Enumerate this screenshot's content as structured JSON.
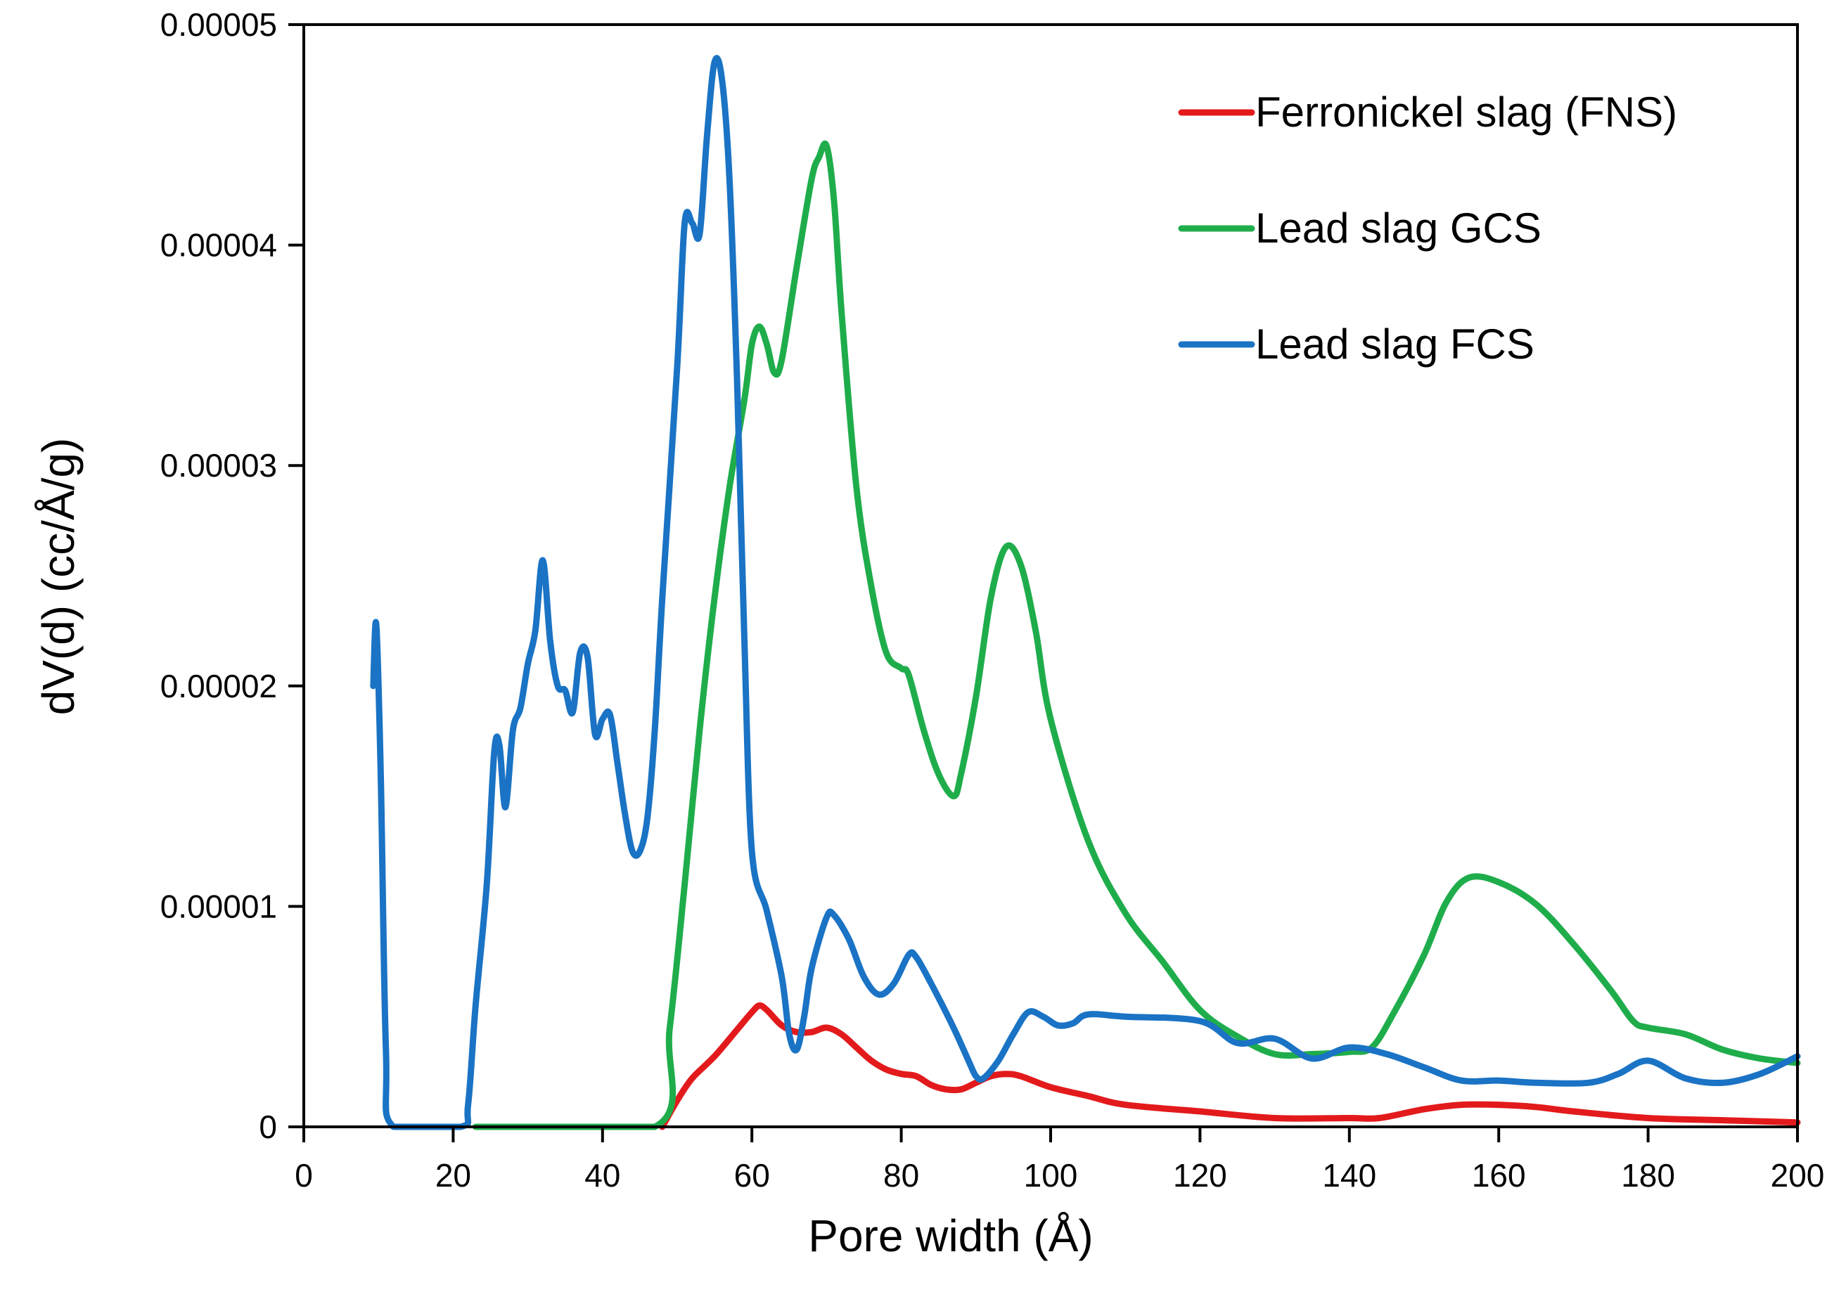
{
  "chart_data": {
    "type": "line",
    "title": "",
    "xlabel": "Pore width (Å)",
    "ylabel": "dV(d) (cc/Å/g)",
    "xlim": [
      0,
      200
    ],
    "ylim": [
      0,
      5e-05
    ],
    "grid": false,
    "legend_position": "top-right",
    "x_ticks": [
      0,
      20,
      40,
      60,
      80,
      100,
      120,
      140,
      160,
      180,
      200
    ],
    "x_tick_labels": [
      "0",
      "20",
      "40",
      "60",
      "80",
      "100",
      "120",
      "140",
      "160",
      "180",
      "200"
    ],
    "y_ticks": [
      0,
      1e-05,
      2e-05,
      3e-05,
      4e-05,
      5e-05
    ],
    "y_tick_labels": [
      "0",
      "0.00001",
      "0.00002",
      "0.00003",
      "0.00004",
      "0.00005"
    ],
    "series": [
      {
        "name": "Ferronickel slag (FNS)",
        "color": "#e31a1c",
        "points": [
          [
            48,
            0
          ],
          [
            50,
            1.2e-06
          ],
          [
            52,
            2.2e-06
          ],
          [
            55,
            3.2e-06
          ],
          [
            58,
            4.4e-06
          ],
          [
            60,
            5.2e-06
          ],
          [
            61,
            5.5e-06
          ],
          [
            62,
            5.3e-06
          ],
          [
            64,
            4.6e-06
          ],
          [
            66,
            4.3e-06
          ],
          [
            68,
            4.3e-06
          ],
          [
            70,
            4.5e-06
          ],
          [
            72,
            4.2e-06
          ],
          [
            74,
            3.6e-06
          ],
          [
            76,
            3e-06
          ],
          [
            78,
            2.6e-06
          ],
          [
            80,
            2.4e-06
          ],
          [
            82,
            2.3e-06
          ],
          [
            84,
            1.9e-06
          ],
          [
            86,
            1.7e-06
          ],
          [
            88,
            1.7e-06
          ],
          [
            90,
            2e-06
          ],
          [
            92,
            2.3e-06
          ],
          [
            94,
            2.4e-06
          ],
          [
            96,
            2.3e-06
          ],
          [
            100,
            1.8e-06
          ],
          [
            105,
            1.4e-06
          ],
          [
            110,
            1e-06
          ],
          [
            120,
            7e-07
          ],
          [
            130,
            4e-07
          ],
          [
            140,
            4e-07
          ],
          [
            144,
            4e-07
          ],
          [
            150,
            8e-07
          ],
          [
            155,
            1e-06
          ],
          [
            160,
            1e-06
          ],
          [
            165,
            9e-07
          ],
          [
            170,
            7e-07
          ],
          [
            180,
            4e-07
          ],
          [
            190,
            3e-07
          ],
          [
            200,
            2e-07
          ]
        ]
      },
      {
        "name": "Lead slag GCS",
        "color": "#1fad4b",
        "points": [
          [
            23,
            0
          ],
          [
            47,
            0
          ],
          [
            49,
            4.5e-06
          ],
          [
            51,
            1.1e-05
          ],
          [
            53,
            1.8e-05
          ],
          [
            55,
            2.4e-05
          ],
          [
            57,
            2.9e-05
          ],
          [
            59,
            3.3e-05
          ],
          [
            60,
            3.55e-05
          ],
          [
            61,
            3.63e-05
          ],
          [
            62,
            3.55e-05
          ],
          [
            63,
            3.42e-05
          ],
          [
            64,
            3.48e-05
          ],
          [
            66,
            3.9e-05
          ],
          [
            68,
            4.3e-05
          ],
          [
            69,
            4.4e-05
          ],
          [
            70,
            4.45e-05
          ],
          [
            71,
            4.2e-05
          ],
          [
            72,
            3.7e-05
          ],
          [
            74,
            2.9e-05
          ],
          [
            76,
            2.45e-05
          ],
          [
            78,
            2.15e-05
          ],
          [
            80,
            2.08e-05
          ],
          [
            81,
            2.05e-05
          ],
          [
            83,
            1.8e-05
          ],
          [
            85,
            1.6e-05
          ],
          [
            87,
            1.5e-05
          ],
          [
            88,
            1.6e-05
          ],
          [
            90,
            1.95e-05
          ],
          [
            92,
            2.4e-05
          ],
          [
            94,
            2.63e-05
          ],
          [
            96,
            2.55e-05
          ],
          [
            98,
            2.25e-05
          ],
          [
            100,
            1.85e-05
          ],
          [
            105,
            1.3e-05
          ],
          [
            110,
            9.7e-06
          ],
          [
            115,
            7.5e-06
          ],
          [
            120,
            5.3e-06
          ],
          [
            125,
            4.1e-06
          ],
          [
            130,
            3.3e-06
          ],
          [
            135,
            3.3e-06
          ],
          [
            140,
            3.4e-06
          ],
          [
            143,
            3.6e-06
          ],
          [
            146,
            5.2e-06
          ],
          [
            150,
            7.8e-06
          ],
          [
            153,
            1.02e-05
          ],
          [
            156,
            1.13e-05
          ],
          [
            160,
            1.11e-05
          ],
          [
            165,
            1.01e-05
          ],
          [
            170,
            8.3e-06
          ],
          [
            175,
            6.2e-06
          ],
          [
            178,
            4.8e-06
          ],
          [
            180,
            4.5e-06
          ],
          [
            185,
            4.2e-06
          ],
          [
            190,
            3.5e-06
          ],
          [
            195,
            3.1e-06
          ],
          [
            200,
            2.9e-06
          ]
        ]
      },
      {
        "name": "Lead slag FCS",
        "color": "#1a73c4",
        "points": [
          [
            9.3,
            2e-05
          ],
          [
            9.7,
            2.28e-05
          ],
          [
            10.3,
            1.6e-05
          ],
          [
            11,
            3.5e-06
          ],
          [
            12,
            0
          ],
          [
            21,
            0
          ],
          [
            22,
            1e-06
          ],
          [
            23,
            5.5e-06
          ],
          [
            24.5,
            1.1e-05
          ],
          [
            25.5,
            1.7e-05
          ],
          [
            26.2,
            1.73e-05
          ],
          [
            27,
            1.45e-05
          ],
          [
            28,
            1.8e-05
          ],
          [
            29,
            1.9e-05
          ],
          [
            30,
            2.1e-05
          ],
          [
            31,
            2.25e-05
          ],
          [
            32,
            2.57e-05
          ],
          [
            33,
            2.2e-05
          ],
          [
            34,
            2e-05
          ],
          [
            35,
            1.98e-05
          ],
          [
            36,
            1.88e-05
          ],
          [
            37,
            2.15e-05
          ],
          [
            38,
            2.13e-05
          ],
          [
            39,
            1.78e-05
          ],
          [
            40,
            1.85e-05
          ],
          [
            41,
            1.87e-05
          ],
          [
            42,
            1.65e-05
          ],
          [
            43,
            1.42e-05
          ],
          [
            44,
            1.25e-05
          ],
          [
            45,
            1.25e-05
          ],
          [
            46,
            1.4e-05
          ],
          [
            47,
            1.8e-05
          ],
          [
            48,
            2.4e-05
          ],
          [
            50,
            3.45e-05
          ],
          [
            51,
            4.1e-05
          ],
          [
            52,
            4.1e-05
          ],
          [
            53,
            4.05e-05
          ],
          [
            54,
            4.5e-05
          ],
          [
            55,
            4.83e-05
          ],
          [
            56,
            4.75e-05
          ],
          [
            57,
            4.3e-05
          ],
          [
            58,
            3.4e-05
          ],
          [
            59,
            2.2e-05
          ],
          [
            60,
            1.25e-05
          ],
          [
            62,
            9.8e-06
          ],
          [
            64,
            6.8e-06
          ],
          [
            65,
            4.2e-06
          ],
          [
            66,
            3.5e-06
          ],
          [
            67,
            5e-06
          ],
          [
            68,
            7.2e-06
          ],
          [
            70,
            9.5e-06
          ],
          [
            71,
            9.6e-06
          ],
          [
            73,
            8.5e-06
          ],
          [
            75,
            6.8e-06
          ],
          [
            77,
            6e-06
          ],
          [
            79,
            6.5e-06
          ],
          [
            81,
            7.8e-06
          ],
          [
            82,
            7.7e-06
          ],
          [
            84,
            6.5e-06
          ],
          [
            87,
            4.5e-06
          ],
          [
            89,
            3e-06
          ],
          [
            90,
            2.3e-06
          ],
          [
            91,
            2.2e-06
          ],
          [
            93,
            3e-06
          ],
          [
            95,
            4.2e-06
          ],
          [
            97,
            5.2e-06
          ],
          [
            99,
            5e-06
          ],
          [
            101,
            4.6e-06
          ],
          [
            103,
            4.7e-06
          ],
          [
            105,
            5.1e-06
          ],
          [
            110,
            5e-06
          ],
          [
            120,
            4.8e-06
          ],
          [
            125,
            3.8e-06
          ],
          [
            130,
            4e-06
          ],
          [
            135,
            3.1e-06
          ],
          [
            140,
            3.6e-06
          ],
          [
            145,
            3.3e-06
          ],
          [
            150,
            2.7e-06
          ],
          [
            155,
            2.1e-06
          ],
          [
            160,
            2.1e-06
          ],
          [
            165,
            2e-06
          ],
          [
            172,
            2e-06
          ],
          [
            176,
            2.4e-06
          ],
          [
            180,
            3e-06
          ],
          [
            185,
            2.2e-06
          ],
          [
            190,
            2e-06
          ],
          [
            195,
            2.4e-06
          ],
          [
            200,
            3.2e-06
          ]
        ]
      }
    ]
  }
}
